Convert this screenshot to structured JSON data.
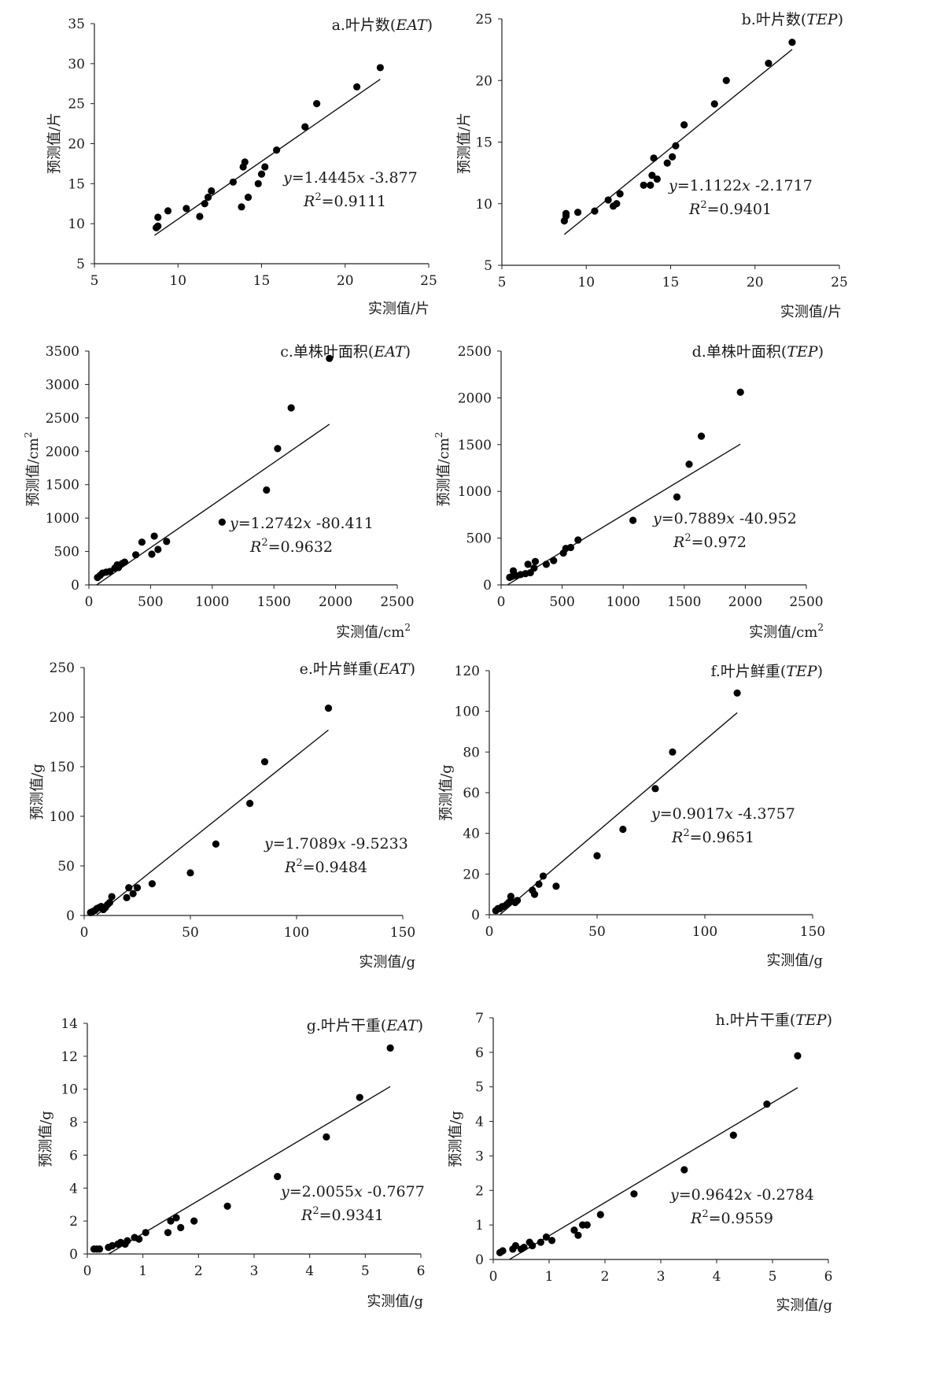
{
  "chart_data": [
    {
      "type": "scatter",
      "title_prefix": "a.叶片数(",
      "title_em": "EAT",
      "title_suffix": ")",
      "xlabel": "实测值/片",
      "ylabel": "预测值/片",
      "xlim": [
        5,
        25
      ],
      "ylim": [
        5,
        35
      ],
      "xticks": [
        "5",
        "10",
        "15",
        "20",
        "25"
      ],
      "yticks": [
        "5",
        "10",
        "15",
        "20",
        "25",
        "30",
        "35"
      ],
      "points": [
        [
          8.7,
          9.5
        ],
        [
          8.8,
          9.7
        ],
        [
          8.8,
          10.8
        ],
        [
          9.4,
          11.6
        ],
        [
          10.5,
          11.9
        ],
        [
          11.3,
          10.9
        ],
        [
          11.6,
          12.5
        ],
        [
          11.8,
          13.3
        ],
        [
          12.0,
          14.1
        ],
        [
          13.3,
          15.2
        ],
        [
          13.8,
          12.1
        ],
        [
          13.9,
          17.1
        ],
        [
          14.0,
          17.7
        ],
        [
          14.2,
          13.3
        ],
        [
          14.8,
          15.0
        ],
        [
          15.0,
          16.2
        ],
        [
          15.2,
          17.1
        ],
        [
          15.9,
          19.2
        ],
        [
          17.6,
          22.1
        ],
        [
          18.3,
          25.0
        ],
        [
          20.7,
          27.1
        ],
        [
          22.1,
          29.5
        ]
      ],
      "fit": {
        "slope": 1.4445,
        "intercept": -3.877,
        "x_range": [
          8.6,
          22.1
        ]
      },
      "equation": {
        "y": "y",
        "coef": "=1.4445",
        "x": "x",
        "rest": " -3.877",
        "r": "R",
        "sup": "2",
        "r2": "=0.9111"
      }
    },
    {
      "type": "scatter",
      "title_prefix": "b.叶片数(",
      "title_em": "TEP",
      "title_suffix": ")",
      "xlabel": "实测值/片",
      "ylabel": "预测值/片",
      "xlim": [
        5,
        25
      ],
      "ylim": [
        5,
        25
      ],
      "xticks": [
        "5",
        "10",
        "15",
        "20",
        "25"
      ],
      "yticks": [
        "5",
        "10",
        "15",
        "20",
        "25"
      ],
      "points": [
        [
          8.7,
          8.6
        ],
        [
          8.8,
          9.0
        ],
        [
          8.8,
          9.2
        ],
        [
          9.5,
          9.3
        ],
        [
          10.5,
          9.4
        ],
        [
          11.3,
          10.3
        ],
        [
          11.6,
          9.8
        ],
        [
          11.8,
          10.0
        ],
        [
          12.0,
          10.8
        ],
        [
          13.4,
          11.5
        ],
        [
          13.8,
          11.5
        ],
        [
          13.9,
          12.3
        ],
        [
          14.0,
          13.7
        ],
        [
          14.2,
          12.0
        ],
        [
          14.8,
          13.3
        ],
        [
          15.1,
          13.8
        ],
        [
          15.3,
          14.7
        ],
        [
          15.8,
          16.4
        ],
        [
          17.6,
          18.1
        ],
        [
          18.3,
          20.0
        ],
        [
          20.8,
          21.4
        ],
        [
          22.2,
          23.1
        ]
      ],
      "fit": {
        "slope": 1.1122,
        "intercept": -2.1717,
        "x_range": [
          8.7,
          22.2
        ]
      },
      "equation": {
        "y": "y",
        "coef": "=1.1122",
        "x": "x",
        "rest": " -2.1717",
        "r": "R",
        "sup": "2",
        "r2": "=0.9401"
      }
    },
    {
      "type": "scatter",
      "title_prefix": "c.单株叶面积(",
      "title_em": "EAT",
      "title_suffix": ")",
      "xlabel": "实测值/cm",
      "xlabel_sup": "2",
      "ylabel": "预测值/cm",
      "ylabel_sup": "2",
      "xlim": [
        0,
        2500
      ],
      "ylim": [
        0,
        3500
      ],
      "xticks": [
        "0",
        "500",
        "1000",
        "1500",
        "2000",
        "2500"
      ],
      "yticks": [
        "0",
        "500",
        "1000",
        "1500",
        "2000",
        "2500",
        "3000",
        "3500"
      ],
      "points": [
        [
          70,
          110
        ],
        [
          90,
          140
        ],
        [
          110,
          175
        ],
        [
          140,
          190
        ],
        [
          170,
          200
        ],
        [
          210,
          250
        ],
        [
          230,
          300
        ],
        [
          240,
          260
        ],
        [
          270,
          320
        ],
        [
          290,
          340
        ],
        [
          380,
          450
        ],
        [
          430,
          640
        ],
        [
          510,
          460
        ],
        [
          530,
          730
        ],
        [
          560,
          530
        ],
        [
          630,
          650
        ],
        [
          1080,
          940
        ],
        [
          1440,
          1420
        ],
        [
          1530,
          2040
        ],
        [
          1640,
          2650
        ],
        [
          1950,
          3390
        ]
      ],
      "fit": {
        "slope": 1.2742,
        "intercept": -80.411,
        "x_range": [
          63,
          1950
        ]
      },
      "equation": {
        "y": "y",
        "coef": "=1.2742",
        "x": "x",
        "rest": " -80.411",
        "r": "R",
        "sup": "2",
        "r2": "=0.9632"
      }
    },
    {
      "type": "scatter",
      "title_prefix": "d.单株叶面积(",
      "title_em": "TEP",
      "title_suffix": ")",
      "xlabel": "实测值/cm",
      "xlabel_sup": "2",
      "ylabel": "预测值/cm",
      "ylabel_sup": "2",
      "xlim": [
        0,
        2500
      ],
      "ylim": [
        0,
        2500
      ],
      "xticks": [
        "0",
        "500",
        "1000",
        "1500",
        "2000",
        "2500"
      ],
      "yticks": [
        "0",
        "500",
        "1000",
        "1500",
        "2000",
        "2500"
      ],
      "points": [
        [
          70,
          80
        ],
        [
          90,
          90
        ],
        [
          100,
          150
        ],
        [
          120,
          100
        ],
        [
          160,
          110
        ],
        [
          200,
          120
        ],
        [
          220,
          220
        ],
        [
          240,
          130
        ],
        [
          270,
          180
        ],
        [
          280,
          250
        ],
        [
          370,
          220
        ],
        [
          430,
          260
        ],
        [
          510,
          340
        ],
        [
          530,
          390
        ],
        [
          570,
          400
        ],
        [
          630,
          480
        ],
        [
          1080,
          690
        ],
        [
          1440,
          940
        ],
        [
          1540,
          1290
        ],
        [
          1640,
          1590
        ],
        [
          1960,
          2060
        ]
      ],
      "fit": {
        "slope": 0.7889,
        "intercept": -40.952,
        "x_range": [
          55,
          1960
        ]
      },
      "equation": {
        "y": "y",
        "coef": "=0.7889",
        "x": "x",
        "rest": " -40.952",
        "r": "R",
        "sup": "2",
        "r2": "=0.972"
      }
    },
    {
      "type": "scatter",
      "title_prefix": "e.叶片鲜重(",
      "title_em": "EAT",
      "title_suffix": ")",
      "xlabel": "实测值/g",
      "ylabel": "预测值/g",
      "xlim": [
        0,
        150
      ],
      "ylim": [
        0,
        250
      ],
      "xticks": [
        "0",
        "50",
        "100",
        "150"
      ],
      "yticks": [
        "0",
        "50",
        "100",
        "150",
        "200",
        "250"
      ],
      "points": [
        [
          3,
          3
        ],
        [
          4,
          4
        ],
        [
          5,
          5
        ],
        [
          6,
          7
        ],
        [
          7,
          8
        ],
        [
          8,
          9
        ],
        [
          9,
          6
        ],
        [
          10,
          8
        ],
        [
          11,
          11
        ],
        [
          12,
          13
        ],
        [
          13,
          19
        ],
        [
          20,
          18
        ],
        [
          21,
          28
        ],
        [
          23,
          22
        ],
        [
          25,
          28
        ],
        [
          32,
          32
        ],
        [
          50,
          43
        ],
        [
          62,
          72
        ],
        [
          78,
          113
        ],
        [
          85,
          155
        ],
        [
          115,
          209
        ]
      ],
      "fit": {
        "slope": 1.7089,
        "intercept": -9.5233,
        "x_range": [
          6,
          115
        ]
      },
      "equation": {
        "y": "y",
        "coef": "=1.7089",
        "x": "x",
        "rest": " -9.5233",
        "r": "R",
        "sup": "2",
        "r2": "=0.9484"
      }
    },
    {
      "type": "scatter",
      "title_prefix": "f.叶片鲜重(",
      "title_em": "TEP",
      "title_suffix": ")",
      "xlabel": "实测值/g",
      "ylabel": "预测值/g",
      "xlim": [
        0,
        150
      ],
      "ylim": [
        0,
        120
      ],
      "xticks": [
        "0",
        "50",
        "100",
        "150"
      ],
      "yticks": [
        "0",
        "20",
        "40",
        "60",
        "80",
        "100",
        "120"
      ],
      "points": [
        [
          3,
          2
        ],
        [
          4,
          3
        ],
        [
          5,
          3
        ],
        [
          6,
          4
        ],
        [
          7,
          4
        ],
        [
          8,
          5
        ],
        [
          9,
          6
        ],
        [
          10,
          7
        ],
        [
          10,
          9
        ],
        [
          12,
          6
        ],
        [
          13,
          7
        ],
        [
          20,
          12
        ],
        [
          21,
          10
        ],
        [
          23,
          15
        ],
        [
          25,
          19
        ],
        [
          31,
          14
        ],
        [
          50,
          29
        ],
        [
          62,
          42
        ],
        [
          77,
          62
        ],
        [
          85,
          80
        ],
        [
          115,
          109
        ]
      ],
      "fit": {
        "slope": 0.9017,
        "intercept": -4.3757,
        "x_range": [
          5,
          115
        ]
      },
      "equation": {
        "y": "y",
        "coef": "=0.9017",
        "x": "x",
        "rest": " -4.3757",
        "r": "R",
        "sup": "2",
        "r2": "=0.9651"
      }
    },
    {
      "type": "scatter",
      "title_prefix": "g.叶片干重(",
      "title_em": "EAT",
      "title_suffix": ")",
      "xlabel": "实测值/g",
      "ylabel": "预测值/g",
      "xlim": [
        0,
        6
      ],
      "ylim": [
        0,
        14
      ],
      "xticks": [
        "0",
        "1",
        "2",
        "3",
        "4",
        "5",
        "6"
      ],
      "yticks": [
        "0",
        "2",
        "4",
        "6",
        "8",
        "10",
        "12",
        "14"
      ],
      "points": [
        [
          0.12,
          0.3
        ],
        [
          0.17,
          0.3
        ],
        [
          0.22,
          0.3
        ],
        [
          0.38,
          0.4
        ],
        [
          0.45,
          0.5
        ],
        [
          0.55,
          0.6
        ],
        [
          0.6,
          0.7
        ],
        [
          0.68,
          0.6
        ],
        [
          0.72,
          0.8
        ],
        [
          0.85,
          1.0
        ],
        [
          0.93,
          0.9
        ],
        [
          1.05,
          1.3
        ],
        [
          1.45,
          1.3
        ],
        [
          1.5,
          2.0
        ],
        [
          1.6,
          2.2
        ],
        [
          1.68,
          1.6
        ],
        [
          1.92,
          2.0
        ],
        [
          2.52,
          2.9
        ],
        [
          3.42,
          4.7
        ],
        [
          4.3,
          7.1
        ],
        [
          4.9,
          9.5
        ],
        [
          5.45,
          12.5
        ]
      ],
      "fit": {
        "slope": 2.0055,
        "intercept": -0.7677,
        "x_range": [
          0.38,
          5.45
        ]
      },
      "equation": {
        "y": "y",
        "coef": "=2.0055",
        "x": "x",
        "rest": " -0.7677",
        "r": "R",
        "sup": "2",
        "r2": "=0.9341"
      }
    },
    {
      "type": "scatter",
      "title_prefix": "h.叶片干重(",
      "title_em": "TEP",
      "title_suffix": ")",
      "xlabel": "实测值/g",
      "ylabel": "预测值/g",
      "xlim": [
        0,
        6
      ],
      "ylim": [
        0,
        7
      ],
      "xticks": [
        "0",
        "1",
        "2",
        "3",
        "4",
        "5",
        "6"
      ],
      "yticks": [
        "0",
        "1",
        "2",
        "3",
        "4",
        "5",
        "6",
        "7"
      ],
      "points": [
        [
          0.12,
          0.2
        ],
        [
          0.17,
          0.25
        ],
        [
          0.35,
          0.3
        ],
        [
          0.4,
          0.4
        ],
        [
          0.5,
          0.3
        ],
        [
          0.55,
          0.35
        ],
        [
          0.65,
          0.5
        ],
        [
          0.7,
          0.4
        ],
        [
          0.85,
          0.5
        ],
        [
          0.95,
          0.65
        ],
        [
          1.05,
          0.55
        ],
        [
          1.45,
          0.85
        ],
        [
          1.52,
          0.7
        ],
        [
          1.6,
          1.0
        ],
        [
          1.68,
          1.0
        ],
        [
          1.92,
          1.3
        ],
        [
          2.52,
          1.9
        ],
        [
          3.42,
          2.6
        ],
        [
          4.3,
          3.6
        ],
        [
          4.9,
          4.5
        ],
        [
          5.45,
          5.9
        ]
      ],
      "fit": {
        "slope": 0.9642,
        "intercept": -0.2784,
        "x_range": [
          0.29,
          5.45
        ]
      },
      "equation": {
        "y": "y",
        "coef": "=0.9642",
        "x": "x",
        "rest": " -0.2784",
        "r": "R",
        "sup": "2",
        "r2": "=0.9559"
      }
    }
  ]
}
